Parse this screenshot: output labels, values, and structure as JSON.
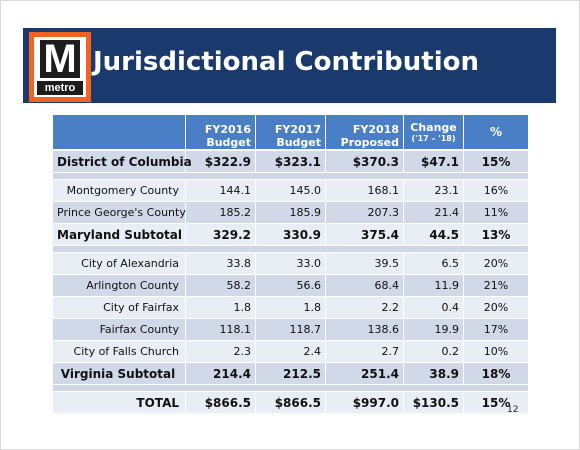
{
  "logo": {
    "letter": "M",
    "word": "metro"
  },
  "title": "Jurisdictional Contribution",
  "table": {
    "headers": [
      {
        "line1": "",
        "line2": ""
      },
      {
        "line1": "FY2016",
        "line2": "Budget"
      },
      {
        "line1": "FY2017",
        "line2": "Budget"
      },
      {
        "line1": "FY2018",
        "line2": "Proposed"
      },
      {
        "line1": "Change",
        "line2": "('17 – '18)"
      },
      {
        "line1": "%",
        "line2": ""
      }
    ],
    "rows": {
      "dc": [
        "District of Columbia",
        "$322.9",
        "$323.1",
        "$370.3",
        "$47.1",
        "15%"
      ],
      "mont": [
        "Montgomery County",
        "144.1",
        "145.0",
        "168.1",
        "23.1",
        "16%"
      ],
      "pg": [
        "Prince George's County",
        "185.2",
        "185.9",
        "207.3",
        "21.4",
        "11%"
      ],
      "md": [
        "Maryland Subtotal",
        "329.2",
        "330.9",
        "375.4",
        "44.5",
        "13%"
      ],
      "alex": [
        "City of Alexandria",
        "33.8",
        "33.0",
        "39.5",
        "6.5",
        "20%"
      ],
      "arl": [
        "Arlington County",
        "58.2",
        "56.6",
        "68.4",
        "11.9",
        "21%"
      ],
      "cfx": [
        "City of Fairfax",
        "1.8",
        "1.8",
        "2.2",
        "0.4",
        "20%"
      ],
      "ffx": [
        "Fairfax County",
        "118.1",
        "118.7",
        "138.6",
        "19.9",
        "17%"
      ],
      "fc": [
        "City of Falls Church",
        "2.3",
        "2.4",
        "2.7",
        "0.2",
        "10%"
      ],
      "va": [
        "Virginia Subtotal",
        "214.4",
        "212.5",
        "251.4",
        "38.9",
        "18%"
      ],
      "total": [
        "TOTAL",
        "$866.5",
        "$866.5",
        "$997.0",
        "$130.5",
        "15%"
      ]
    }
  },
  "page_number": "12"
}
